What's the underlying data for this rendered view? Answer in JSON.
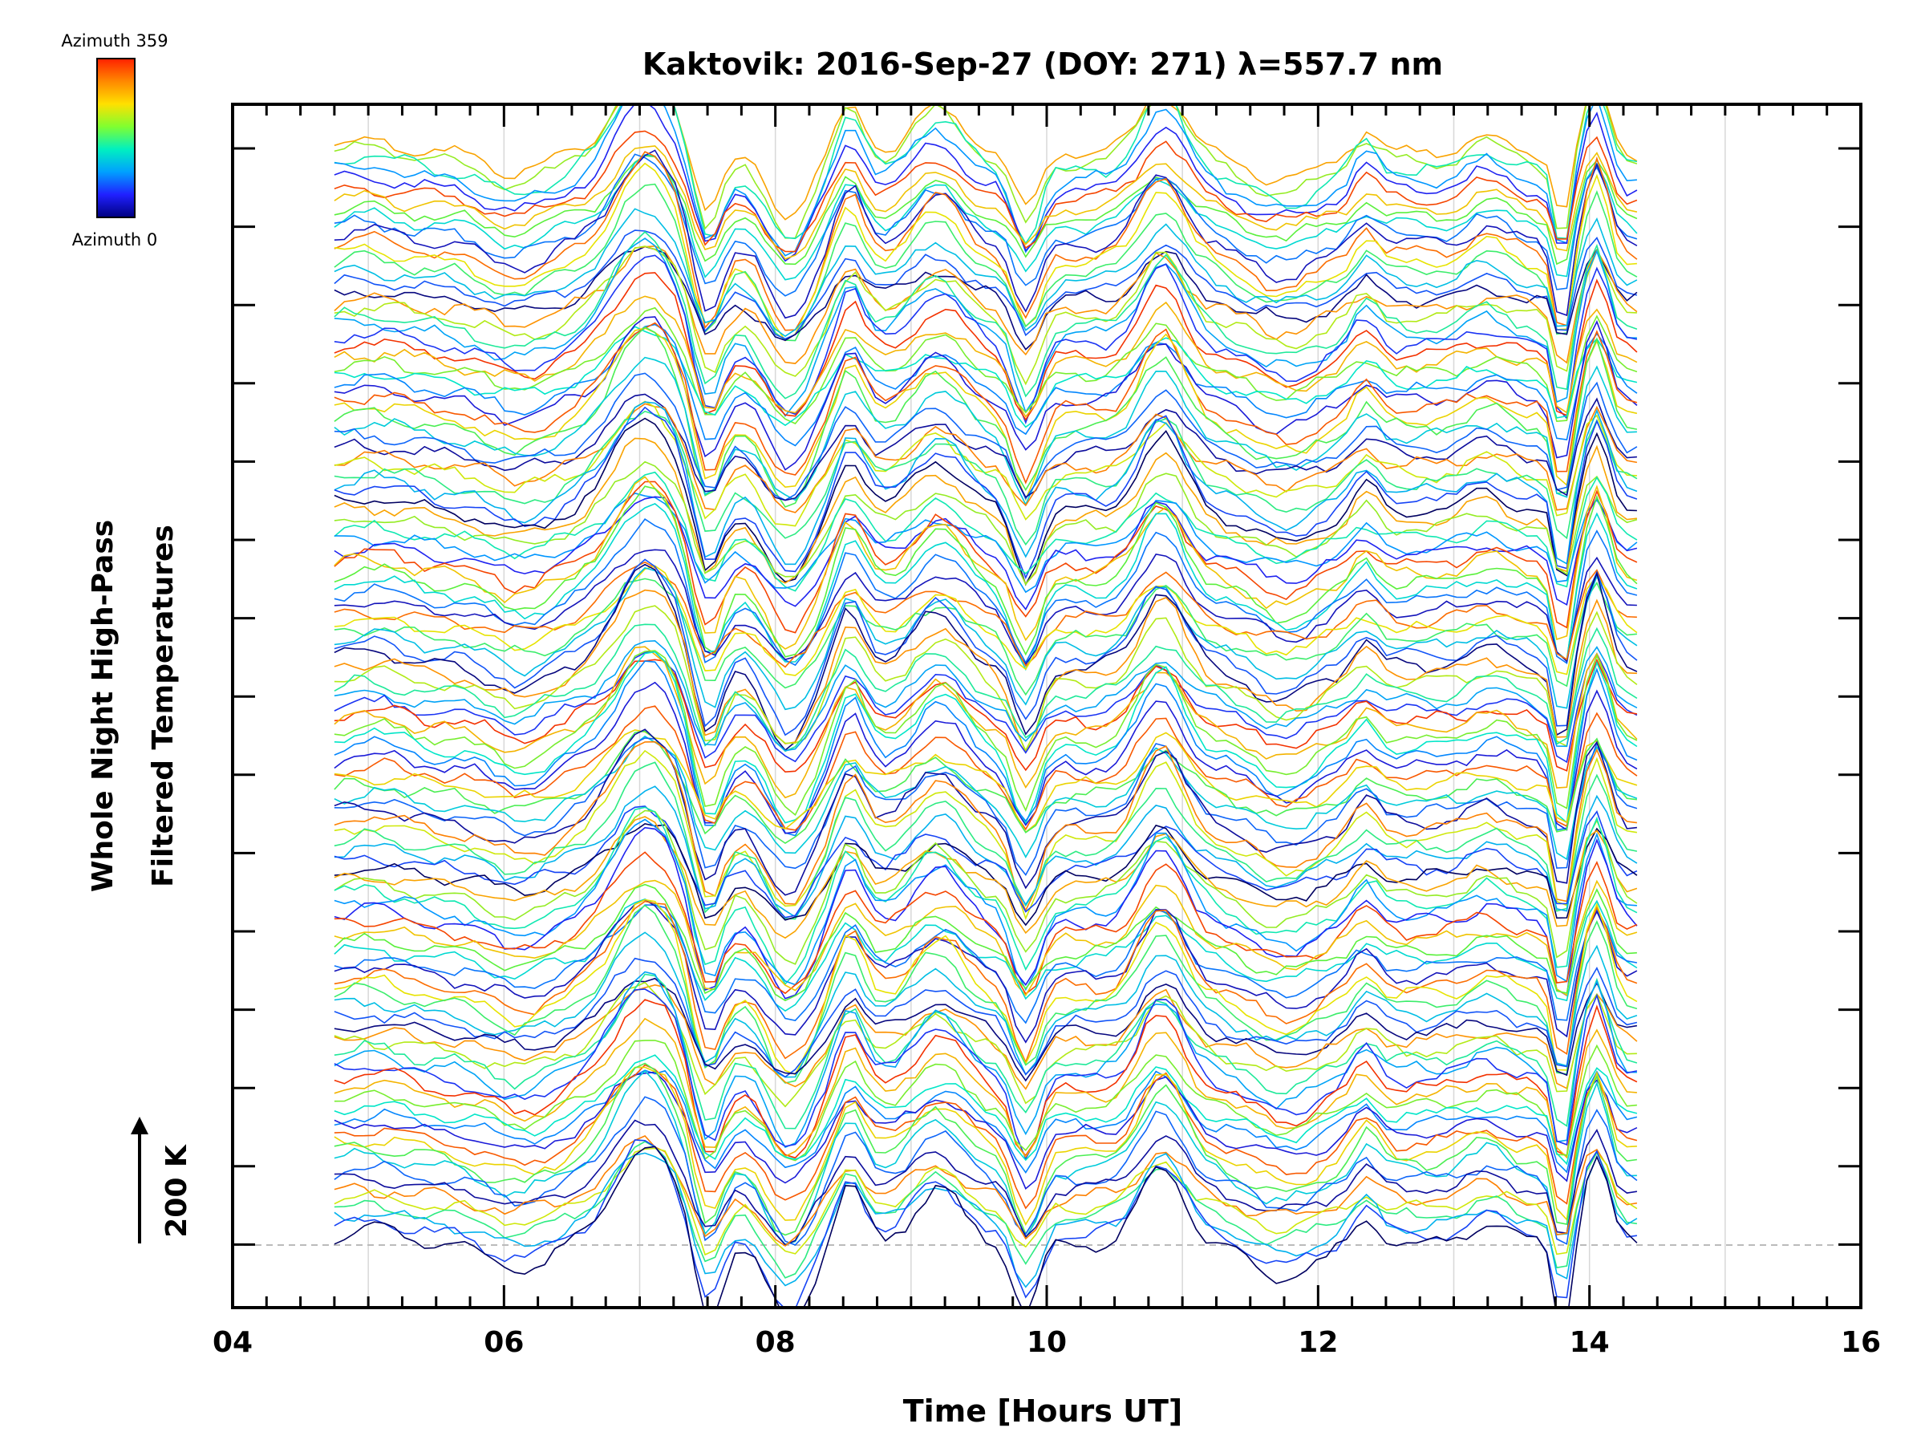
{
  "chart_data": {
    "type": "line",
    "title": "Kaktovik: 2016-Sep-27 (DOY: 271) λ=557.7 nm",
    "xlabel": "Time [Hours UT]",
    "ylabel_line1": "Whole Night High-Pass",
    "ylabel_line2": "Filtered Temperatures",
    "xlim": [
      4,
      16
    ],
    "x_ticks": [
      {
        "value": 4,
        "label": "04"
      },
      {
        "value": 6,
        "label": "06"
      },
      {
        "value": 8,
        "label": "08"
      },
      {
        "value": 10,
        "label": "10"
      },
      {
        "value": 12,
        "label": "12"
      },
      {
        "value": 14,
        "label": "14"
      },
      {
        "value": 16,
        "label": "16"
      }
    ],
    "data_time_range": [
      4.75,
      14.35
    ],
    "scale_bar_label": "200 K",
    "scale_bar_kelvin": 200,
    "colorbar": {
      "label_top": "Azimuth 359",
      "label_bottom": "Azimuth 0",
      "colors": [
        "#ff2000",
        "#ff8800",
        "#ffe000",
        "#80ff30",
        "#00f0c0",
        "#00a0ff",
        "#2020ff",
        "#000080"
      ]
    },
    "series_description": "Stacked high-pass filtered temperature traces, one per azimuth (0-359), coloured by azimuth",
    "series_count": 120,
    "reference_line": {
      "style": "dashed",
      "color": "#bbbbbb"
    },
    "key_features_hours": [
      {
        "x": 7.05,
        "feature": "peak"
      },
      {
        "x": 7.5,
        "feature": "trough"
      },
      {
        "x": 8.1,
        "feature": "trough"
      },
      {
        "x": 8.55,
        "feature": "peak"
      },
      {
        "x": 9.2,
        "feature": "peak"
      },
      {
        "x": 9.85,
        "feature": "trough"
      },
      {
        "x": 10.85,
        "feature": "peak"
      },
      {
        "x": 11.75,
        "feature": "trough"
      },
      {
        "x": 13.8,
        "feature": "trough"
      },
      {
        "x": 14.05,
        "feature": "peak"
      }
    ]
  }
}
